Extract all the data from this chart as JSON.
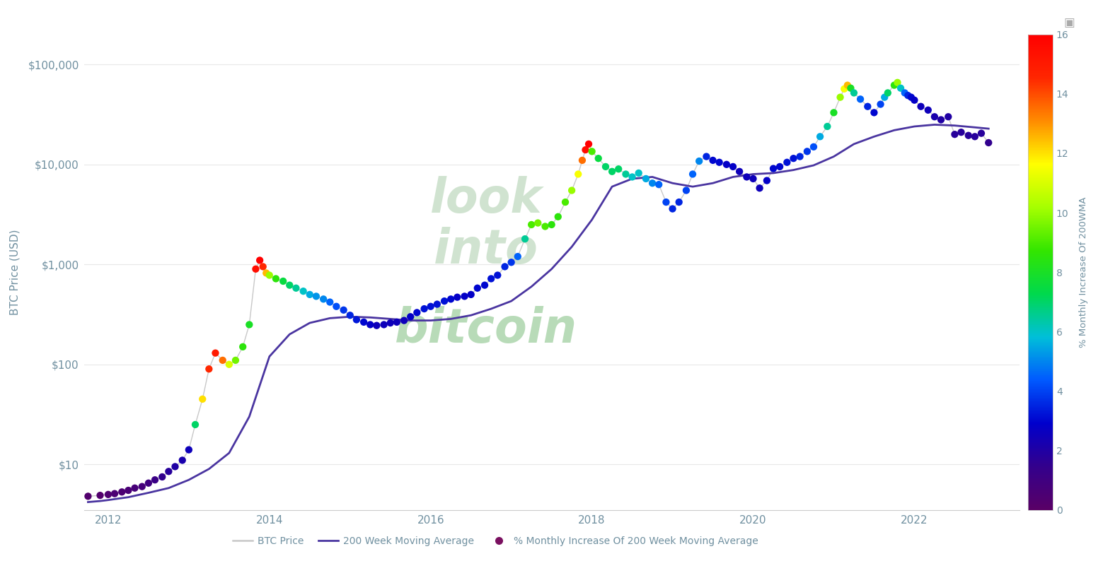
{
  "ylabel": "BTC Price (USD)",
  "colorbar_label": "% Monthly Increase Of 200WMA",
  "colorbar_ticks": [
    0,
    2,
    4,
    6,
    8,
    10,
    12,
    14,
    16
  ],
  "colorbar_vmin": 0,
  "colorbar_vmax": 16,
  "bg_color": "#ffffff",
  "plot_bg_color": "#ffffff",
  "grid_color": "#e8e8e8",
  "btc_line_color": "#c8c8c8",
  "ma_line_color": "#4a35a0",
  "legend_text_color": "#7090a0",
  "axis_label_color": "#7090a0",
  "tick_color": "#7090a0",
  "watermark_color1": "#b8d8b8",
  "watermark_color2": "#90cc90",
  "xlim": [
    2011.7,
    2023.3
  ],
  "ylim_log": [
    3.5,
    200000.0
  ],
  "yticks": [
    10,
    100,
    1000,
    10000,
    100000
  ],
  "ytick_labels": [
    "$10",
    "$100",
    "$1,000",
    "$10,000",
    "$100,000"
  ],
  "xticks": [
    2012,
    2014,
    2016,
    2018,
    2020,
    2022
  ],
  "btc_price_data": [
    [
      2011.75,
      4.8
    ],
    [
      2011.9,
      4.9
    ],
    [
      2012.0,
      5.0
    ],
    [
      2012.08,
      5.1
    ],
    [
      2012.17,
      5.3
    ],
    [
      2012.25,
      5.5
    ],
    [
      2012.33,
      5.8
    ],
    [
      2012.42,
      6.0
    ],
    [
      2012.5,
      6.5
    ],
    [
      2012.58,
      7.0
    ],
    [
      2012.67,
      7.5
    ],
    [
      2012.75,
      8.5
    ],
    [
      2012.83,
      9.5
    ],
    [
      2012.92,
      11.0
    ],
    [
      2013.0,
      14.0
    ],
    [
      2013.08,
      25.0
    ],
    [
      2013.17,
      45.0
    ],
    [
      2013.25,
      90.0
    ],
    [
      2013.33,
      130.0
    ],
    [
      2013.42,
      110.0
    ],
    [
      2013.5,
      100.0
    ],
    [
      2013.58,
      110.0
    ],
    [
      2013.67,
      150.0
    ],
    [
      2013.75,
      250.0
    ],
    [
      2013.83,
      900.0
    ],
    [
      2013.88,
      1100.0
    ],
    [
      2013.92,
      950.0
    ],
    [
      2013.96,
      820.0
    ],
    [
      2014.0,
      780.0
    ],
    [
      2014.08,
      720.0
    ],
    [
      2014.17,
      680.0
    ],
    [
      2014.25,
      620.0
    ],
    [
      2014.33,
      580.0
    ],
    [
      2014.42,
      540.0
    ],
    [
      2014.5,
      500.0
    ],
    [
      2014.58,
      480.0
    ],
    [
      2014.67,
      450.0
    ],
    [
      2014.75,
      420.0
    ],
    [
      2014.83,
      380.0
    ],
    [
      2014.92,
      350.0
    ],
    [
      2015.0,
      310.0
    ],
    [
      2015.08,
      280.0
    ],
    [
      2015.17,
      265.0
    ],
    [
      2015.25,
      250.0
    ],
    [
      2015.33,
      245.0
    ],
    [
      2015.42,
      250.0
    ],
    [
      2015.5,
      260.0
    ],
    [
      2015.58,
      265.0
    ],
    [
      2015.67,
      275.0
    ],
    [
      2015.75,
      300.0
    ],
    [
      2015.83,
      330.0
    ],
    [
      2015.92,
      360.0
    ],
    [
      2016.0,
      380.0
    ],
    [
      2016.08,
      400.0
    ],
    [
      2016.17,
      430.0
    ],
    [
      2016.25,
      450.0
    ],
    [
      2016.33,
      470.0
    ],
    [
      2016.42,
      480.0
    ],
    [
      2016.5,
      500.0
    ],
    [
      2016.58,
      580.0
    ],
    [
      2016.67,
      620.0
    ],
    [
      2016.75,
      720.0
    ],
    [
      2016.83,
      780.0
    ],
    [
      2016.92,
      950.0
    ],
    [
      2017.0,
      1050.0
    ],
    [
      2017.08,
      1200.0
    ],
    [
      2017.17,
      1800.0
    ],
    [
      2017.25,
      2500.0
    ],
    [
      2017.33,
      2600.0
    ],
    [
      2017.42,
      2400.0
    ],
    [
      2017.5,
      2500.0
    ],
    [
      2017.58,
      3000.0
    ],
    [
      2017.67,
      4200.0
    ],
    [
      2017.75,
      5500.0
    ],
    [
      2017.83,
      8000.0
    ],
    [
      2017.88,
      11000.0
    ],
    [
      2017.92,
      14000.0
    ],
    [
      2017.96,
      16000.0
    ],
    [
      2018.0,
      13500.0
    ],
    [
      2018.08,
      11500.0
    ],
    [
      2018.17,
      9500.0
    ],
    [
      2018.25,
      8500.0
    ],
    [
      2018.33,
      9000.0
    ],
    [
      2018.42,
      8000.0
    ],
    [
      2018.5,
      7500.0
    ],
    [
      2018.58,
      8200.0
    ],
    [
      2018.67,
      7200.0
    ],
    [
      2018.75,
      6500.0
    ],
    [
      2018.83,
      6300.0
    ],
    [
      2018.92,
      4200.0
    ],
    [
      2019.0,
      3600.0
    ],
    [
      2019.08,
      4200.0
    ],
    [
      2019.17,
      5500.0
    ],
    [
      2019.25,
      8000.0
    ],
    [
      2019.33,
      10800.0
    ],
    [
      2019.42,
      12000.0
    ],
    [
      2019.5,
      11000.0
    ],
    [
      2019.58,
      10500.0
    ],
    [
      2019.67,
      10000.0
    ],
    [
      2019.75,
      9500.0
    ],
    [
      2019.83,
      8500.0
    ],
    [
      2019.92,
      7500.0
    ],
    [
      2020.0,
      7200.0
    ],
    [
      2020.08,
      5800.0
    ],
    [
      2020.17,
      6900.0
    ],
    [
      2020.25,
      9100.0
    ],
    [
      2020.33,
      9500.0
    ],
    [
      2020.42,
      10500.0
    ],
    [
      2020.5,
      11500.0
    ],
    [
      2020.58,
      12000.0
    ],
    [
      2020.67,
      13500.0
    ],
    [
      2020.75,
      15000.0
    ],
    [
      2020.83,
      19000.0
    ],
    [
      2020.92,
      24000.0
    ],
    [
      2021.0,
      33000.0
    ],
    [
      2021.08,
      47000.0
    ],
    [
      2021.13,
      57000.0
    ],
    [
      2021.17,
      62000.0
    ],
    [
      2021.21,
      58000.0
    ],
    [
      2021.25,
      52000.0
    ],
    [
      2021.33,
      45000.0
    ],
    [
      2021.42,
      38000.0
    ],
    [
      2021.5,
      33000.0
    ],
    [
      2021.58,
      40000.0
    ],
    [
      2021.63,
      47000.0
    ],
    [
      2021.67,
      52000.0
    ],
    [
      2021.75,
      62000.0
    ],
    [
      2021.79,
      66000.0
    ],
    [
      2021.83,
      58000.0
    ],
    [
      2021.88,
      52000.0
    ],
    [
      2021.92,
      49000.0
    ],
    [
      2021.96,
      47000.0
    ],
    [
      2022.0,
      44000.0
    ],
    [
      2022.08,
      38000.0
    ],
    [
      2022.17,
      35000.0
    ],
    [
      2022.25,
      30000.0
    ],
    [
      2022.33,
      28000.0
    ],
    [
      2022.42,
      30000.0
    ],
    [
      2022.5,
      20000.0
    ],
    [
      2022.58,
      21000.0
    ],
    [
      2022.67,
      19500.0
    ],
    [
      2022.75,
      19000.0
    ],
    [
      2022.83,
      20500.0
    ],
    [
      2022.92,
      16500.0
    ]
  ],
  "ma200_data": [
    [
      2011.75,
      4.2
    ],
    [
      2011.9,
      4.3
    ],
    [
      2012.0,
      4.4
    ],
    [
      2012.25,
      4.7
    ],
    [
      2012.5,
      5.2
    ],
    [
      2012.75,
      5.8
    ],
    [
      2013.0,
      7.0
    ],
    [
      2013.25,
      9.0
    ],
    [
      2013.5,
      13.0
    ],
    [
      2013.75,
      30.0
    ],
    [
      2014.0,
      120.0
    ],
    [
      2014.25,
      200.0
    ],
    [
      2014.5,
      260.0
    ],
    [
      2014.75,
      290.0
    ],
    [
      2015.0,
      300.0
    ],
    [
      2015.25,
      295.0
    ],
    [
      2015.5,
      285.0
    ],
    [
      2015.75,
      275.0
    ],
    [
      2016.0,
      275.0
    ],
    [
      2016.25,
      285.0
    ],
    [
      2016.5,
      310.0
    ],
    [
      2016.75,
      360.0
    ],
    [
      2017.0,
      430.0
    ],
    [
      2017.25,
      600.0
    ],
    [
      2017.5,
      900.0
    ],
    [
      2017.75,
      1500.0
    ],
    [
      2018.0,
      2800.0
    ],
    [
      2018.25,
      6000.0
    ],
    [
      2018.5,
      7200.0
    ],
    [
      2018.75,
      7500.0
    ],
    [
      2019.0,
      6500.0
    ],
    [
      2019.25,
      6000.0
    ],
    [
      2019.5,
      6500.0
    ],
    [
      2019.75,
      7500.0
    ],
    [
      2020.0,
      8000.0
    ],
    [
      2020.25,
      8200.0
    ],
    [
      2020.5,
      8800.0
    ],
    [
      2020.75,
      9800.0
    ],
    [
      2021.0,
      12000.0
    ],
    [
      2021.25,
      16000.0
    ],
    [
      2021.5,
      19000.0
    ],
    [
      2021.75,
      22000.0
    ],
    [
      2022.0,
      24000.0
    ],
    [
      2022.25,
      25000.0
    ],
    [
      2022.5,
      24500.0
    ],
    [
      2022.75,
      23500.0
    ],
    [
      2022.92,
      22800.0
    ]
  ],
  "dot_data": [
    [
      2011.75,
      4.8,
      0.3
    ],
    [
      2011.9,
      4.9,
      0.3
    ],
    [
      2012.0,
      5.0,
      0.4
    ],
    [
      2012.08,
      5.1,
      0.5
    ],
    [
      2012.17,
      5.3,
      0.5
    ],
    [
      2012.25,
      5.5,
      0.6
    ],
    [
      2012.33,
      5.8,
      0.7
    ],
    [
      2012.42,
      6.0,
      0.8
    ],
    [
      2012.5,
      6.5,
      1.0
    ],
    [
      2012.58,
      7.0,
      1.2
    ],
    [
      2012.67,
      7.5,
      1.5
    ],
    [
      2012.75,
      8.5,
      1.8
    ],
    [
      2012.83,
      9.5,
      2.0
    ],
    [
      2012.92,
      11.0,
      2.2
    ],
    [
      2013.0,
      14.0,
      2.5
    ],
    [
      2013.08,
      25.0,
      7.0
    ],
    [
      2013.17,
      45.0,
      12.0
    ],
    [
      2013.25,
      90.0,
      14.5
    ],
    [
      2013.33,
      130.0,
      15.0
    ],
    [
      2013.42,
      110.0,
      13.5
    ],
    [
      2013.5,
      100.0,
      11.0
    ],
    [
      2013.58,
      110.0,
      9.5
    ],
    [
      2013.67,
      150.0,
      8.5
    ],
    [
      2013.75,
      250.0,
      8.0
    ],
    [
      2013.83,
      900.0,
      15.5
    ],
    [
      2013.88,
      1100.0,
      16.0
    ],
    [
      2013.92,
      950.0,
      14.5
    ],
    [
      2013.96,
      820.0,
      12.5
    ],
    [
      2014.0,
      780.0,
      10.0
    ],
    [
      2014.08,
      720.0,
      8.5
    ],
    [
      2014.17,
      680.0,
      7.5
    ],
    [
      2014.25,
      620.0,
      7.0
    ],
    [
      2014.33,
      580.0,
      6.5
    ],
    [
      2014.42,
      540.0,
      6.0
    ],
    [
      2014.5,
      500.0,
      5.5
    ],
    [
      2014.58,
      480.0,
      5.2
    ],
    [
      2014.67,
      450.0,
      5.0
    ],
    [
      2014.75,
      420.0,
      4.5
    ],
    [
      2014.83,
      380.0,
      4.2
    ],
    [
      2014.92,
      350.0,
      3.8
    ],
    [
      2015.0,
      310.0,
      3.5
    ],
    [
      2015.08,
      280.0,
      3.3
    ],
    [
      2015.17,
      265.0,
      3.0
    ],
    [
      2015.25,
      250.0,
      2.8
    ],
    [
      2015.33,
      245.0,
      2.5
    ],
    [
      2015.42,
      250.0,
      2.5
    ],
    [
      2015.5,
      260.0,
      2.5
    ],
    [
      2015.58,
      265.0,
      2.5
    ],
    [
      2015.67,
      275.0,
      2.5
    ],
    [
      2015.75,
      300.0,
      2.8
    ],
    [
      2015.83,
      330.0,
      3.0
    ],
    [
      2015.92,
      360.0,
      3.2
    ],
    [
      2016.0,
      380.0,
      3.2
    ],
    [
      2016.08,
      400.0,
      3.2
    ],
    [
      2016.17,
      430.0,
      3.2
    ],
    [
      2016.25,
      450.0,
      3.0
    ],
    [
      2016.33,
      470.0,
      2.8
    ],
    [
      2016.42,
      480.0,
      2.8
    ],
    [
      2016.5,
      500.0,
      2.8
    ],
    [
      2016.58,
      580.0,
      3.0
    ],
    [
      2016.67,
      620.0,
      3.0
    ],
    [
      2016.75,
      720.0,
      3.2
    ],
    [
      2016.83,
      780.0,
      3.2
    ],
    [
      2016.92,
      950.0,
      3.5
    ],
    [
      2017.0,
      1050.0,
      3.8
    ],
    [
      2017.08,
      1200.0,
      4.5
    ],
    [
      2017.17,
      1800.0,
      6.5
    ],
    [
      2017.25,
      2500.0,
      9.0
    ],
    [
      2017.33,
      2600.0,
      9.5
    ],
    [
      2017.42,
      2400.0,
      9.0
    ],
    [
      2017.5,
      2500.0,
      8.5
    ],
    [
      2017.58,
      3000.0,
      8.5
    ],
    [
      2017.67,
      4200.0,
      9.0
    ],
    [
      2017.75,
      5500.0,
      10.0
    ],
    [
      2017.83,
      8000.0,
      11.5
    ],
    [
      2017.88,
      11000.0,
      13.5
    ],
    [
      2017.92,
      14000.0,
      15.5
    ],
    [
      2017.96,
      16000.0,
      16.0
    ],
    [
      2018.0,
      13500.0,
      9.0
    ],
    [
      2018.08,
      11500.0,
      7.5
    ],
    [
      2018.17,
      9500.0,
      7.0
    ],
    [
      2018.25,
      8500.0,
      7.0
    ],
    [
      2018.33,
      9000.0,
      7.0
    ],
    [
      2018.42,
      8000.0,
      6.5
    ],
    [
      2018.5,
      7500.0,
      6.0
    ],
    [
      2018.58,
      8200.0,
      6.0
    ],
    [
      2018.67,
      7200.0,
      5.5
    ],
    [
      2018.75,
      6500.0,
      5.0
    ],
    [
      2018.83,
      6300.0,
      4.5
    ],
    [
      2018.92,
      4200.0,
      4.0
    ],
    [
      2019.0,
      3600.0,
      3.5
    ],
    [
      2019.08,
      4200.0,
      3.5
    ],
    [
      2019.17,
      5500.0,
      4.0
    ],
    [
      2019.25,
      8000.0,
      4.5
    ],
    [
      2019.33,
      10800.0,
      5.0
    ],
    [
      2019.42,
      12000.0,
      3.5
    ],
    [
      2019.5,
      11000.0,
      3.0
    ],
    [
      2019.58,
      10500.0,
      3.0
    ],
    [
      2019.67,
      10000.0,
      2.8
    ],
    [
      2019.75,
      9500.0,
      2.8
    ],
    [
      2019.83,
      8500.0,
      2.5
    ],
    [
      2019.92,
      7500.0,
      2.5
    ],
    [
      2020.0,
      7200.0,
      2.5
    ],
    [
      2020.08,
      5800.0,
      2.5
    ],
    [
      2020.17,
      6900.0,
      2.8
    ],
    [
      2020.25,
      9100.0,
      3.0
    ],
    [
      2020.33,
      9500.0,
      3.0
    ],
    [
      2020.42,
      10500.0,
      3.2
    ],
    [
      2020.5,
      11500.0,
      3.2
    ],
    [
      2020.58,
      12000.0,
      3.5
    ],
    [
      2020.67,
      13500.0,
      3.8
    ],
    [
      2020.75,
      15000.0,
      4.2
    ],
    [
      2020.83,
      19000.0,
      5.5
    ],
    [
      2020.92,
      24000.0,
      6.5
    ],
    [
      2021.0,
      33000.0,
      8.0
    ],
    [
      2021.08,
      47000.0,
      10.0
    ],
    [
      2021.13,
      57000.0,
      11.5
    ],
    [
      2021.17,
      62000.0,
      12.5
    ],
    [
      2021.21,
      58000.0,
      8.0
    ],
    [
      2021.25,
      52000.0,
      6.5
    ],
    [
      2021.33,
      45000.0,
      4.5
    ],
    [
      2021.42,
      38000.0,
      3.5
    ],
    [
      2021.5,
      33000.0,
      3.0
    ],
    [
      2021.58,
      40000.0,
      4.0
    ],
    [
      2021.63,
      47000.0,
      5.5
    ],
    [
      2021.67,
      52000.0,
      7.0
    ],
    [
      2021.75,
      62000.0,
      8.5
    ],
    [
      2021.79,
      66000.0,
      10.0
    ],
    [
      2021.83,
      58000.0,
      6.0
    ],
    [
      2021.88,
      52000.0,
      4.5
    ],
    [
      2021.92,
      49000.0,
      3.5
    ],
    [
      2021.96,
      47000.0,
      3.0
    ],
    [
      2022.0,
      44000.0,
      2.8
    ],
    [
      2022.08,
      38000.0,
      2.5
    ],
    [
      2022.17,
      35000.0,
      2.5
    ],
    [
      2022.25,
      30000.0,
      2.2
    ],
    [
      2022.33,
      28000.0,
      2.0
    ],
    [
      2022.42,
      30000.0,
      2.0
    ],
    [
      2022.5,
      20000.0,
      1.8
    ],
    [
      2022.58,
      21000.0,
      1.8
    ],
    [
      2022.67,
      19500.0,
      1.8
    ],
    [
      2022.75,
      19000.0,
      1.8
    ],
    [
      2022.83,
      20500.0,
      1.8
    ],
    [
      2022.92,
      16500.0,
      1.5
    ]
  ]
}
